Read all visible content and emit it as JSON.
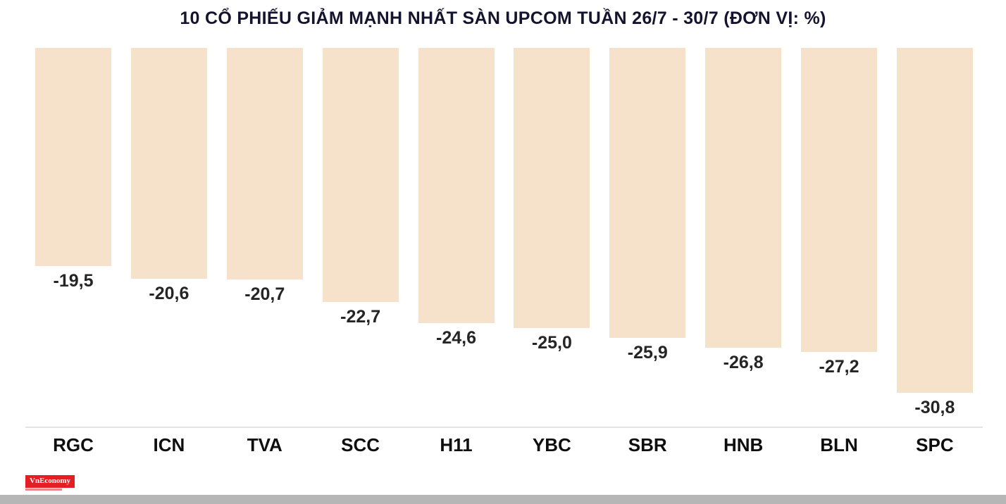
{
  "chart_data": {
    "type": "bar",
    "title": "10 CỔ PHIẾU GIẢM MẠNH NHẤT SÀN UPCOM TUẦN 26/7 - 30/7 (ĐƠN VỊ: %)",
    "categories": [
      "RGC",
      "ICN",
      "TVA",
      "SCC",
      "H11",
      "YBC",
      "SBR",
      "HNB",
      "BLN",
      "SPC"
    ],
    "values": [
      -19.5,
      -20.6,
      -20.7,
      -22.7,
      -24.6,
      -25.0,
      -25.9,
      -26.8,
      -27.2,
      -30.8
    ],
    "value_labels": [
      "-19,5",
      "-20,6",
      "-20,7",
      "-22,7",
      "-24,6",
      "-25,0",
      "-25,9",
      "-26,8",
      "-27,2",
      "-30,8"
    ],
    "orientation": "vertical-hanging-negative",
    "bar_color": "#f6e1cb",
    "label_color": "#252525",
    "ylim": [
      0,
      -30.8
    ],
    "grid": false,
    "legend": "none"
  },
  "branding": {
    "logo_text": "VnEconomy",
    "logo_bg": "#e31e25"
  },
  "layout_colors": {
    "footer_bar": "#b6b6b6",
    "baseline": "#e3e3e3"
  }
}
